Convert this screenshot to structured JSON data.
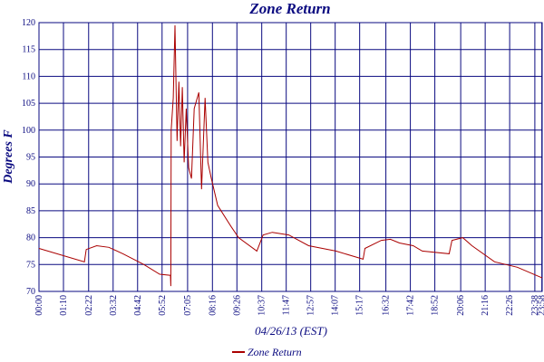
{
  "chart_data": {
    "type": "line",
    "title": "Zone Return",
    "y_label": "Degrees F",
    "x_label": "04/26/13 (EST)",
    "xlim": [
      "00:00",
      "23:59"
    ],
    "ylim": [
      70,
      120
    ],
    "yticks": [
      70,
      75,
      80,
      85,
      90,
      95,
      100,
      105,
      110,
      115,
      120
    ],
    "xticks": [
      "00:00",
      "01:10",
      "02:22",
      "03:32",
      "04:42",
      "05:52",
      "07:05",
      "08:16",
      "09:26",
      "10:37",
      "11:47",
      "12:57",
      "14:07",
      "15:17",
      "16:32",
      "17:42",
      "18:52",
      "20:06",
      "21:16",
      "22:26",
      "23:38",
      "23:58"
    ],
    "grid": true,
    "legend": "bottom",
    "x": [
      "00:00",
      "02:10",
      "02:15",
      "02:45",
      "03:20",
      "04:00",
      "05:00",
      "05:45",
      "06:16",
      "06:17",
      "06:18",
      "06:24",
      "06:29",
      "06:35",
      "06:40",
      "06:45",
      "06:50",
      "06:55",
      "07:01",
      "07:08",
      "07:16",
      "07:24",
      "07:37",
      "07:45",
      "07:55",
      "08:03",
      "08:13",
      "08:31",
      "09:10",
      "09:31",
      "10:23",
      "10:41",
      "11:07",
      "11:54",
      "12:51",
      "14:09",
      "15:27",
      "15:32",
      "16:19",
      "16:45",
      "17:11",
      "17:50",
      "18:16",
      "19:33",
      "19:41",
      "20:12",
      "20:38",
      "21:43",
      "22:48",
      "23:59"
    ],
    "series": [
      {
        "name": "Zone Return",
        "color": "#aa0000",
        "values": [
          78,
          75.5,
          77.8,
          78.5,
          78.2,
          77,
          75,
          73.2,
          73,
          71,
          100,
          106,
          119.5,
          98,
          109,
          97,
          108,
          94,
          104,
          93,
          91,
          104,
          107,
          89,
          106,
          94,
          91,
          86,
          82,
          80,
          77.5,
          80.5,
          81,
          80.5,
          78.5,
          77.5,
          76,
          78,
          79.5,
          79.7,
          79,
          78.5,
          77.5,
          77,
          79.5,
          80,
          78.5,
          75.5,
          74.5,
          72.5
        ]
      }
    ]
  }
}
